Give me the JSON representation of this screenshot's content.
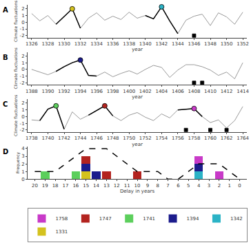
{
  "chart_data": [
    {
      "type": "line",
      "title": "A",
      "x_label": "year",
      "y_label": "Climate fluctuations",
      "x": [
        1326,
        1327,
        1328,
        1329,
        1330,
        1331,
        1332,
        1333,
        1334,
        1335,
        1336,
        1337,
        1338,
        1339,
        1340,
        1341,
        1342,
        1343,
        1344,
        1345,
        1346,
        1347,
        1348,
        1349,
        1350,
        1351,
        1352
      ],
      "series": [
        {
          "color": "#9a9a9a",
          "values": [
            1.3,
            0.2,
            1.0,
            -0.3,
            0.8,
            2.0,
            -0.9,
            0.6,
            1.4,
            0.3,
            0.9,
            0.4,
            1.5,
            0.6,
            1.0,
            0.5,
            2.3,
            0.2,
            -1.7,
            0.3,
            0.9,
            1.2,
            -0.5,
            1.4,
            0.8,
            -0.3,
            1.5
          ]
        },
        {
          "color": "#000000",
          "values": [
            null,
            null,
            null,
            -0.3,
            0.8,
            2.0,
            -0.9,
            null,
            null,
            null,
            null,
            null,
            null,
            null,
            1.0,
            0.5,
            2.3,
            0.2,
            -1.7,
            null,
            null,
            null,
            null,
            null,
            null,
            null,
            null
          ]
        },
        {
          "type": "scatter",
          "marker": "circle",
          "x": [
            1331,
            1342
          ],
          "values": [
            2.0,
            2.3
          ],
          "colors": [
            "#d4c21e",
            "#2bb3c6"
          ]
        },
        {
          "type": "scatter",
          "marker": "square",
          "color": "#000000",
          "x": [
            1346
          ],
          "values": [
            -2
          ]
        }
      ],
      "xlim": [
        1325.5,
        1352.5
      ],
      "xticks": [
        1326,
        1328,
        1330,
        1332,
        1334,
        1336,
        1338,
        1340,
        1342,
        1344,
        1346,
        1348,
        1350,
        1352
      ],
      "ylim": [
        -2.3,
        2.6
      ],
      "yticks": [
        -2,
        -1,
        0,
        1,
        2
      ],
      "grid": false
    },
    {
      "type": "line",
      "title": "B",
      "x_label": "year",
      "y_label": "Climate fluctuations",
      "x": [
        1388,
        1389,
        1390,
        1391,
        1392,
        1393,
        1394,
        1395,
        1396,
        1397,
        1398,
        1399,
        1400,
        1401,
        1402,
        1403,
        1404,
        1405,
        1406,
        1407,
        1408,
        1409,
        1410,
        1411,
        1412,
        1413,
        1414
      ],
      "series": [
        {
          "color": "#9a9a9a",
          "values": [
            0.0,
            -0.4,
            -0.8,
            -0.3,
            0.4,
            1.0,
            1.4,
            -0.9,
            -1.0,
            -0.4,
            -1.1,
            -0.6,
            -0.2,
            -0.7,
            0.0,
            0.6,
            0.3,
            -1.2,
            -0.1,
            0.7,
            0.7,
            0.4,
            -0.1,
            -0.9,
            -0.4,
            -1.4,
            1.0
          ]
        },
        {
          "color": "#000000",
          "values": [
            null,
            null,
            null,
            -0.3,
            0.4,
            1.0,
            1.4,
            -0.9,
            -1.0,
            null,
            null,
            null,
            null,
            null,
            null,
            null,
            null,
            null,
            null,
            null,
            null,
            null,
            null,
            null,
            null,
            null,
            null
          ]
        },
        {
          "type": "scatter",
          "marker": "circle",
          "x": [
            1394
          ],
          "values": [
            1.4
          ],
          "colors": [
            "#1c1c8c"
          ]
        },
        {
          "type": "scatter",
          "marker": "square",
          "color": "#000000",
          "x": [
            1408,
            1409
          ],
          "values": [
            -2,
            -2
          ]
        }
      ],
      "xlim": [
        1387.5,
        1414.5
      ],
      "xticks": [
        1388,
        1390,
        1392,
        1394,
        1396,
        1398,
        1400,
        1402,
        1404,
        1406,
        1408,
        1410,
        1412,
        1414
      ],
      "ylim": [
        -2.3,
        2.6
      ],
      "yticks": [
        -2,
        -1,
        0,
        1,
        2
      ],
      "grid": false
    },
    {
      "type": "line",
      "title": "C",
      "x_label": "year",
      "y_label": "Climate fluctuations",
      "x": [
        1738,
        1739,
        1740,
        1741,
        1742,
        1743,
        1744,
        1745,
        1746,
        1747,
        1748,
        1749,
        1750,
        1751,
        1752,
        1753,
        1754,
        1755,
        1756,
        1757,
        1758,
        1759,
        1760,
        1761,
        1762,
        1763,
        1764
      ],
      "series": [
        {
          "color": "#9a9a9a",
          "values": [
            -0.5,
            -0.6,
            1.1,
            1.6,
            -1.9,
            0.7,
            -0.4,
            0.2,
            0.9,
            1.6,
            0.1,
            -0.6,
            0.2,
            0.6,
            -0.1,
            -0.6,
            0.4,
            -0.2,
            1.0,
            1.1,
            1.2,
            0.0,
            -0.9,
            -0.5,
            -1.7,
            -0.6,
            1.5
          ]
        },
        {
          "color": "#000000",
          "values": [
            null,
            -0.6,
            1.1,
            1.6,
            -1.9,
            null,
            null,
            0.2,
            0.9,
            1.6,
            0.1,
            null,
            null,
            null,
            null,
            null,
            null,
            null,
            1.0,
            1.1,
            1.2,
            0.0,
            null,
            null,
            null,
            null,
            null
          ]
        },
        {
          "type": "scatter",
          "marker": "circle",
          "x": [
            1741,
            1747,
            1758
          ],
          "values": [
            1.6,
            1.6,
            1.2
          ],
          "colors": [
            "#5ccf5c",
            "#b3231f",
            "#c83ac8"
          ]
        },
        {
          "type": "scatter",
          "marker": "square",
          "color": "#000000",
          "x": [
            1757,
            1760,
            1762
          ],
          "values": [
            -2,
            -2,
            -2
          ]
        }
      ],
      "xlim": [
        1737.5,
        1764.5
      ],
      "xticks": [
        1738,
        1740,
        1742,
        1744,
        1746,
        1748,
        1750,
        1752,
        1754,
        1756,
        1758,
        1760,
        1762,
        1764
      ],
      "ylim": [
        -2.3,
        2.6
      ],
      "yticks": [
        -2,
        -1,
        0,
        1,
        2
      ],
      "grid": false
    },
    {
      "type": "bar",
      "title": "D",
      "stacked": true,
      "x_label": "Delay in years",
      "y_label": "Frequency",
      "x": [
        20,
        19,
        18,
        17,
        16,
        15,
        14,
        13,
        12,
        11,
        10,
        9,
        8,
        7,
        6,
        5,
        4,
        3,
        2,
        1,
        0
      ],
      "series": [
        {
          "name": "1331",
          "color": "#d4c21e",
          "values": [
            0,
            0,
            0,
            0,
            0,
            1,
            0,
            0,
            0,
            0,
            0,
            0,
            0,
            0,
            0,
            0,
            0,
            0,
            0,
            0,
            0
          ]
        },
        {
          "name": "1342",
          "color": "#2bb3c6",
          "values": [
            0,
            0,
            0,
            0,
            0,
            0,
            0,
            0,
            0,
            0,
            0,
            0,
            0,
            0,
            0,
            0,
            1,
            0,
            0,
            0,
            0
          ]
        },
        {
          "name": "1394",
          "color": "#1c1c8c",
          "values": [
            0,
            0,
            0,
            0,
            0,
            1,
            1,
            0,
            0,
            0,
            0,
            0,
            0,
            0,
            0,
            0,
            1,
            0,
            0,
            0,
            0
          ]
        },
        {
          "name": "1741",
          "color": "#5ccf5c",
          "values": [
            0,
            1,
            0,
            0,
            1,
            0,
            0,
            0,
            0,
            0,
            0,
            0,
            0,
            0,
            0,
            0,
            0,
            0,
            0,
            0,
            0
          ]
        },
        {
          "name": "1747",
          "color": "#b3231f",
          "values": [
            0,
            0,
            0,
            0,
            0,
            1,
            0,
            1,
            0,
            0,
            1,
            0,
            0,
            0,
            0,
            0,
            0,
            0,
            0,
            0,
            0
          ]
        },
        {
          "name": "1758",
          "color": "#c83ac8",
          "values": [
            0,
            0,
            0,
            0,
            0,
            0,
            0,
            0,
            0,
            0,
            0,
            0,
            0,
            0,
            0,
            0,
            1,
            0,
            1,
            0,
            0
          ]
        },
        {
          "type": "line",
          "line_style": "dash",
          "color": "#000000",
          "values": [
            1,
            1,
            1,
            2,
            3,
            4,
            4,
            4,
            3,
            2,
            1,
            1,
            1,
            0,
            0,
            1,
            2,
            2,
            2,
            1,
            0
          ]
        }
      ],
      "xlim": [
        20.7,
        -0.7
      ],
      "xticks": [
        20,
        19,
        18,
        17,
        16,
        15,
        14,
        13,
        12,
        11,
        10,
        9,
        8,
        7,
        6,
        5,
        4,
        3,
        2,
        1,
        0
      ],
      "ylim": [
        0,
        4.3
      ],
      "yticks": [
        0,
        1,
        2,
        3,
        4
      ],
      "legend": "bottom",
      "grid": false
    }
  ]
}
